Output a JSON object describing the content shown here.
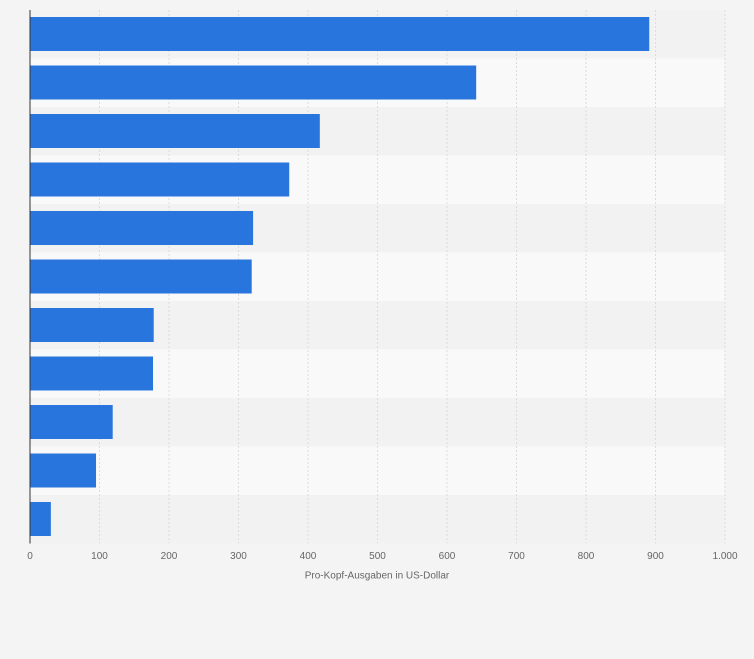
{
  "chart_data": {
    "type": "bar",
    "orientation": "horizontal",
    "categories": [
      null,
      null,
      null,
      null,
      null,
      null,
      null,
      null,
      null,
      null,
      null
    ],
    "values": [
      891,
      642,
      417,
      373,
      321,
      319,
      178,
      177,
      119,
      95,
      30
    ],
    "color": "#2876dd",
    "xlabel": "Pro-Kopf-Ausgaben in US-Dollar",
    "xlim": [
      0,
      1000
    ],
    "xticks": [
      0,
      100,
      200,
      300,
      400,
      500,
      600,
      700,
      800,
      900,
      {
        "value": 1000,
        "label": "1.000"
      }
    ],
    "grid": true
  }
}
